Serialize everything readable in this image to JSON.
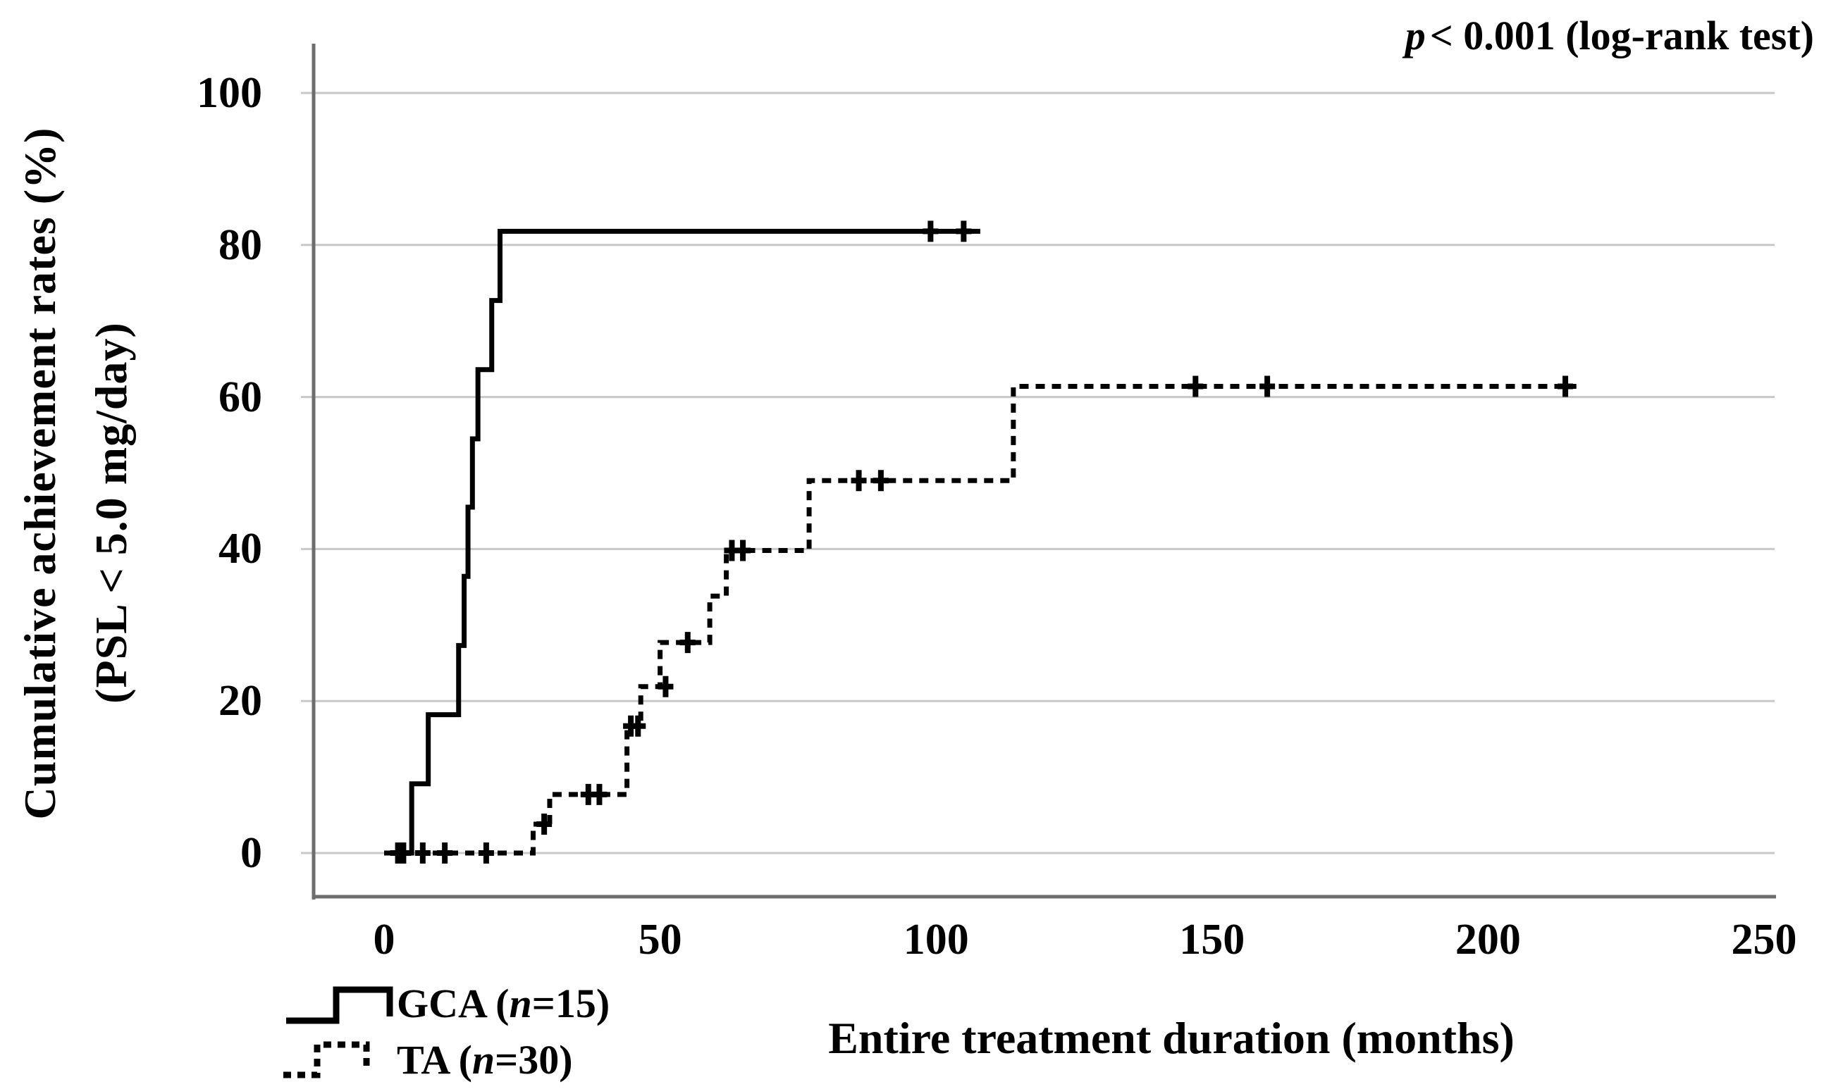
{
  "annotation": {
    "italic": "p",
    "rest": "< 0.001 (log-rank test)"
  },
  "x_axis_title": "Entire treatment duration (months)",
  "y_axis_title_line1": "Cumulative achievement rates (%)",
  "y_axis_title_line2": "(PSL < 5.0 mg/day)",
  "legend": {
    "items": [
      {
        "id": "gca",
        "pre": "GCA (",
        "n_italic": "n",
        "post": "=15)",
        "style": "solid"
      },
      {
        "id": "ta",
        "pre": "TA (",
        "n_italic": "n",
        "post": "=30)",
        "style": "dashed"
      }
    ]
  },
  "chart_data": {
    "type": "line",
    "subtype": "kaplan-meier-step",
    "title": "",
    "xlabel": "Entire treatment duration (months)",
    "ylabel": "Cumulative achievement rates (%) (PSL < 5.0 mg/day)",
    "annotation": "p < 0.001 (log-rank test)",
    "xlim": [
      0,
      250
    ],
    "ylim": [
      0,
      100
    ],
    "x_ticks": [
      0,
      50,
      100,
      150,
      200,
      250
    ],
    "y_ticks": [
      0,
      20,
      40,
      60,
      80,
      100
    ],
    "grid": "horizontal",
    "legend_position": "bottom-left",
    "series": [
      {
        "name": "GCA (n=15)",
        "n": 15,
        "style": "solid",
        "color": "#000000",
        "steps": [
          [
            0,
            0
          ],
          [
            5,
            9.1
          ],
          [
            8,
            18.2
          ],
          [
            13.5,
            27.3
          ],
          [
            14.5,
            36.4
          ],
          [
            15.2,
            45.5
          ],
          [
            16,
            54.5
          ],
          [
            17,
            63.6
          ],
          [
            19.5,
            72.7
          ],
          [
            21,
            81.8
          ]
        ],
        "end_x": 108,
        "final_value": 81.8,
        "censors": [
          [
            2.5,
            0
          ],
          [
            3.5,
            0
          ],
          [
            99,
            81.8
          ],
          [
            105,
            81.8
          ]
        ]
      },
      {
        "name": "TA (n=30)",
        "n": 30,
        "style": "dashed",
        "color": "#000000",
        "steps": [
          [
            0,
            0
          ],
          [
            27,
            3.8
          ],
          [
            30,
            7.7
          ],
          [
            44,
            16.7
          ],
          [
            46.5,
            21.9
          ],
          [
            50,
            27.7
          ],
          [
            59,
            33.8
          ],
          [
            62,
            39.8
          ],
          [
            77,
            49.0
          ],
          [
            114,
            61.4
          ]
        ],
        "end_x": 216,
        "final_value": 61.4,
        "censors": [
          [
            3,
            0
          ],
          [
            7,
            0
          ],
          [
            11,
            0
          ],
          [
            18.5,
            0
          ],
          [
            29,
            3.8
          ],
          [
            37,
            7.7
          ],
          [
            39,
            7.7
          ],
          [
            44.7,
            16.7
          ],
          [
            46,
            16.7
          ],
          [
            51,
            21.9
          ],
          [
            55,
            27.7
          ],
          [
            63,
            39.8
          ],
          [
            65,
            39.8
          ],
          [
            86,
            49.0
          ],
          [
            90,
            49.0
          ],
          [
            147,
            61.4
          ],
          [
            160,
            61.4
          ],
          [
            214,
            61.4
          ]
        ]
      }
    ],
    "colors": {
      "curve": "#000000",
      "gridline": "#c8c8c8",
      "axis": "#6e6e6e"
    }
  }
}
